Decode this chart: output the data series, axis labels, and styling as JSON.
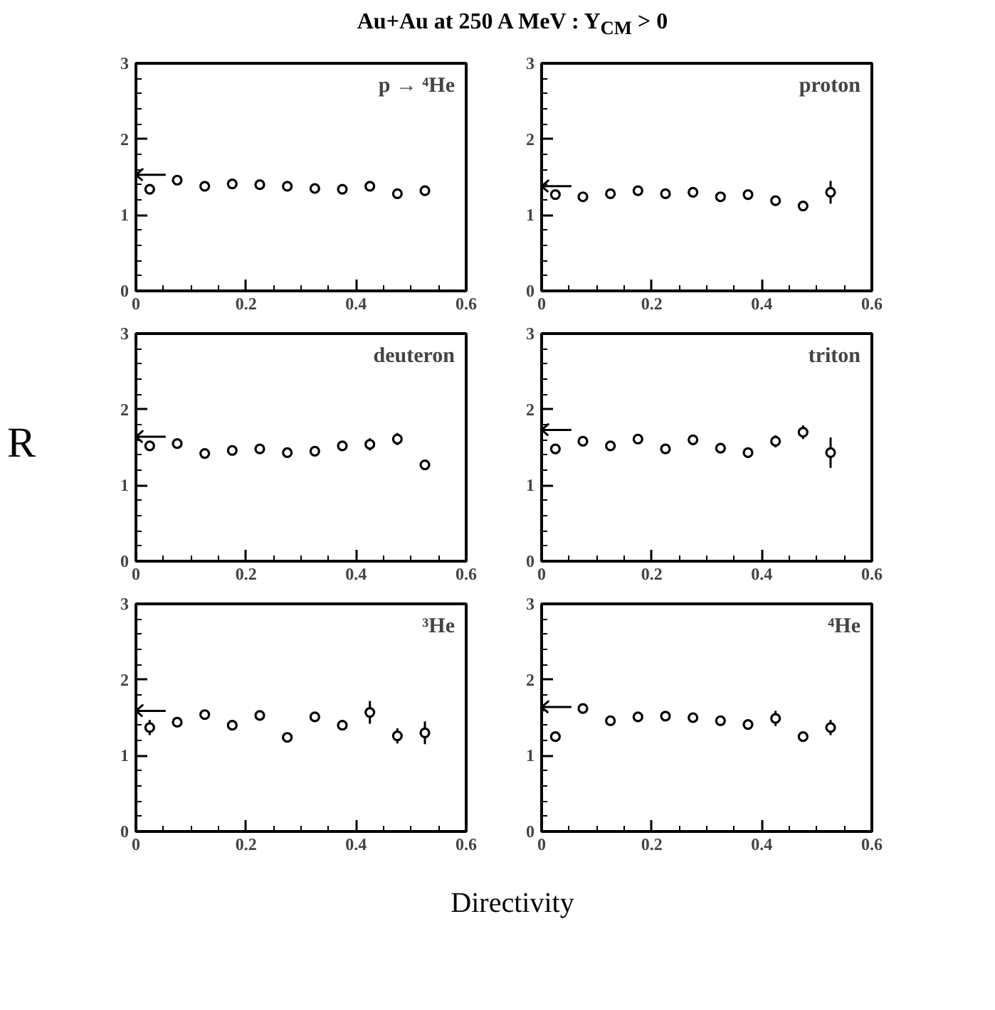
{
  "chart_data": [
    {
      "type": "scatter",
      "title": "Au+Au at 250 A MeV : Y$_{CM}$ > 0",
      "annotations": [
        "p → ⁴He"
      ],
      "ref_lines": [
        {
          "axis": "y",
          "value": 1.53
        }
      ],
      "x": [
        0.025,
        0.075,
        0.125,
        0.175,
        0.225,
        0.275,
        0.325,
        0.375,
        0.425,
        0.475,
        0.525
      ],
      "series": [
        {
          "color": "#000000",
          "values": [
            1.34,
            1.46,
            1.38,
            1.41,
            1.4,
            1.38,
            1.35,
            1.34,
            1.38,
            1.28,
            1.32
          ],
          "errors": [
            null,
            null,
            null,
            null,
            null,
            null,
            null,
            null,
            null,
            null,
            null
          ]
        }
      ],
      "marker": "circle",
      "xlim": [
        0,
        0.6
      ],
      "ylim": [
        0,
        3
      ],
      "xticks": [
        0,
        0.2,
        0.4,
        0.6
      ],
      "yticks": [
        0,
        1,
        2,
        3
      ]
    },
    {
      "type": "scatter",
      "annotations": [
        "proton"
      ],
      "ref_lines": [
        {
          "axis": "y",
          "value": 1.38
        }
      ],
      "x": [
        0.025,
        0.075,
        0.125,
        0.175,
        0.225,
        0.275,
        0.325,
        0.375,
        0.425,
        0.475,
        0.525
      ],
      "series": [
        {
          "color": "#000000",
          "values": [
            1.27,
            1.24,
            1.28,
            1.32,
            1.28,
            1.3,
            1.24,
            1.27,
            1.19,
            1.12,
            1.3
          ],
          "errors": [
            null,
            null,
            null,
            null,
            null,
            null,
            null,
            null,
            null,
            0.06,
            0.15
          ]
        }
      ],
      "marker": "circle",
      "xlim": [
        0,
        0.6
      ],
      "ylim": [
        0,
        3
      ],
      "xticks": [
        0,
        0.2,
        0.4,
        0.6
      ],
      "yticks": [
        0,
        1,
        2,
        3
      ]
    },
    {
      "type": "scatter",
      "ylabel": "R",
      "annotations": [
        "deuteron"
      ],
      "ref_lines": [
        {
          "axis": "y",
          "value": 1.64
        }
      ],
      "x": [
        0.025,
        0.075,
        0.125,
        0.175,
        0.225,
        0.275,
        0.325,
        0.375,
        0.425,
        0.475,
        0.525
      ],
      "series": [
        {
          "color": "#000000",
          "values": [
            1.52,
            1.55,
            1.42,
            1.46,
            1.48,
            1.43,
            1.45,
            1.52,
            1.54,
            1.61,
            1.27
          ],
          "errors": [
            null,
            null,
            null,
            null,
            null,
            null,
            null,
            null,
            0.08,
            0.08,
            0.07
          ]
        }
      ],
      "marker": "circle",
      "xlim": [
        0,
        0.6
      ],
      "ylim": [
        0,
        3
      ],
      "xticks": [
        0,
        0.2,
        0.4,
        0.6
      ],
      "yticks": [
        0,
        1,
        2,
        3
      ]
    },
    {
      "type": "scatter",
      "annotations": [
        "triton"
      ],
      "ref_lines": [
        {
          "axis": "y",
          "value": 1.73
        }
      ],
      "x": [
        0.025,
        0.075,
        0.125,
        0.175,
        0.225,
        0.275,
        0.325,
        0.375,
        0.425,
        0.475,
        0.525
      ],
      "series": [
        {
          "color": "#000000",
          "values": [
            1.48,
            1.58,
            1.52,
            1.61,
            1.48,
            1.6,
            1.49,
            1.43,
            1.58,
            1.7,
            1.43
          ],
          "errors": [
            null,
            null,
            null,
            null,
            null,
            null,
            null,
            null,
            0.08,
            0.09,
            0.2
          ]
        }
      ],
      "marker": "circle",
      "xlim": [
        0,
        0.6
      ],
      "ylim": [
        0,
        3
      ],
      "xticks": [
        0,
        0.2,
        0.4,
        0.6
      ],
      "yticks": [
        0,
        1,
        2,
        3
      ]
    },
    {
      "type": "scatter",
      "annotations": [
        "³He"
      ],
      "ref_lines": [
        {
          "axis": "y",
          "value": 1.59
        }
      ],
      "x": [
        0.025,
        0.075,
        0.125,
        0.175,
        0.225,
        0.275,
        0.325,
        0.375,
        0.425,
        0.475,
        0.525
      ],
      "series": [
        {
          "color": "#000000",
          "values": [
            1.37,
            1.44,
            1.54,
            1.4,
            1.53,
            1.24,
            1.51,
            1.4,
            1.57,
            1.26,
            1.3
          ],
          "errors": [
            0.1,
            null,
            null,
            null,
            null,
            null,
            null,
            null,
            0.15,
            0.1,
            0.15
          ]
        }
      ],
      "marker": "circle",
      "xlim": [
        0,
        0.6
      ],
      "ylim": [
        0,
        3
      ],
      "xticks": [
        0,
        0.2,
        0.4,
        0.6
      ],
      "yticks": [
        0,
        1,
        2,
        3
      ]
    },
    {
      "type": "scatter",
      "xlabel": "Directivity",
      "annotations": [
        "⁴He"
      ],
      "ref_lines": [
        {
          "axis": "y",
          "value": 1.64
        }
      ],
      "x": [
        0.025,
        0.075,
        0.125,
        0.175,
        0.225,
        0.275,
        0.325,
        0.375,
        0.425,
        0.475,
        0.525
      ],
      "series": [
        {
          "color": "#000000",
          "values": [
            1.25,
            1.62,
            1.46,
            1.51,
            1.52,
            1.5,
            1.46,
            1.41,
            1.49,
            1.25,
            1.37
          ],
          "errors": [
            0.06,
            null,
            null,
            null,
            null,
            null,
            null,
            null,
            0.1,
            null,
            0.1
          ]
        }
      ],
      "marker": "circle",
      "xlim": [
        0,
        0.6
      ],
      "ylim": [
        0,
        3
      ],
      "xticks": [
        0,
        0.2,
        0.4,
        0.6
      ],
      "yticks": [
        0,
        1,
        2,
        3
      ]
    }
  ]
}
